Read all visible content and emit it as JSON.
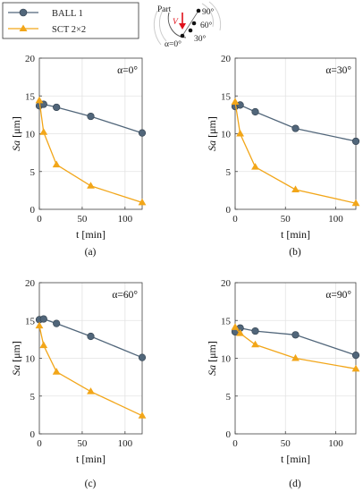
{
  "legend": [
    {
      "label": "BALL 1",
      "color": "#51667a",
      "marker": "circle"
    },
    {
      "label": "SCT 2×2",
      "color": "#f2a619",
      "marker": "triangle"
    }
  ],
  "inset": {
    "part_label": "Part",
    "v_label": "V",
    "angles": [
      "90°",
      "60°",
      "30°",
      "α=0°"
    ]
  },
  "chart_data": [
    {
      "type": "line",
      "panel": "(a)",
      "annotation": "α=0°",
      "xlabel": "t [min]",
      "ylabel_italic": "Sa",
      "ylabel_unit": "[μm]",
      "xlim": [
        0,
        120
      ],
      "ylim": [
        0,
        20
      ],
      "xticks": [
        0,
        50,
        100
      ],
      "yticks": [
        0,
        5,
        10,
        15,
        20
      ],
      "grid": true,
      "series": [
        {
          "name": "BALL 1",
          "x": [
            0,
            5,
            20,
            60,
            120
          ],
          "y": [
            13.7,
            13.9,
            13.5,
            12.3,
            10.1
          ]
        },
        {
          "name": "SCT 2×2",
          "x": [
            0,
            5,
            20,
            60,
            120
          ],
          "y": [
            14.4,
            10.2,
            5.9,
            3.1,
            0.9
          ]
        }
      ]
    },
    {
      "type": "line",
      "panel": "(b)",
      "annotation": "α=30°",
      "xlabel": "t [min]",
      "ylabel_italic": "Sa",
      "ylabel_unit": "[μm]",
      "xlim": [
        0,
        120
      ],
      "ylim": [
        0,
        20
      ],
      "xticks": [
        0,
        50,
        100
      ],
      "yticks": [
        0,
        5,
        10,
        15,
        20
      ],
      "grid": true,
      "series": [
        {
          "name": "BALL 1",
          "x": [
            0,
            5,
            20,
            60,
            120
          ],
          "y": [
            13.6,
            13.8,
            12.9,
            10.7,
            9.0
          ]
        },
        {
          "name": "SCT 2×2",
          "x": [
            0,
            5,
            20,
            60,
            120
          ],
          "y": [
            14.2,
            10.0,
            5.6,
            2.6,
            0.8
          ]
        }
      ]
    },
    {
      "type": "line",
      "panel": "(c)",
      "annotation": "α=60°",
      "xlabel": "t [min]",
      "ylabel_italic": "Sa",
      "ylabel_unit": "[μm]",
      "xlim": [
        0,
        120
      ],
      "ylim": [
        0,
        20
      ],
      "xticks": [
        0,
        50,
        100
      ],
      "yticks": [
        0,
        5,
        10,
        15,
        20
      ],
      "grid": true,
      "series": [
        {
          "name": "BALL 1",
          "x": [
            0,
            5,
            20,
            60,
            120
          ],
          "y": [
            15.1,
            15.2,
            14.6,
            12.9,
            10.1
          ]
        },
        {
          "name": "SCT 2×2",
          "x": [
            0,
            5,
            20,
            60,
            120
          ],
          "y": [
            14.3,
            11.7,
            8.2,
            5.6,
            2.4
          ]
        }
      ]
    },
    {
      "type": "line",
      "panel": "(d)",
      "annotation": "α=90°",
      "xlabel": "t [min]",
      "ylabel_italic": "Sa",
      "ylabel_unit": "[μm]",
      "xlim": [
        0,
        120
      ],
      "ylim": [
        0,
        20
      ],
      "xticks": [
        0,
        50,
        100
      ],
      "yticks": [
        0,
        5,
        10,
        15,
        20
      ],
      "grid": true,
      "series": [
        {
          "name": "BALL 1",
          "x": [
            0,
            5,
            20,
            60,
            120
          ],
          "y": [
            13.5,
            14.0,
            13.6,
            13.1,
            10.4
          ]
        },
        {
          "name": "SCT 2×2",
          "x": [
            0,
            5,
            20,
            60,
            120
          ],
          "y": [
            14.1,
            13.3,
            11.8,
            10.0,
            8.6
          ]
        }
      ]
    }
  ]
}
